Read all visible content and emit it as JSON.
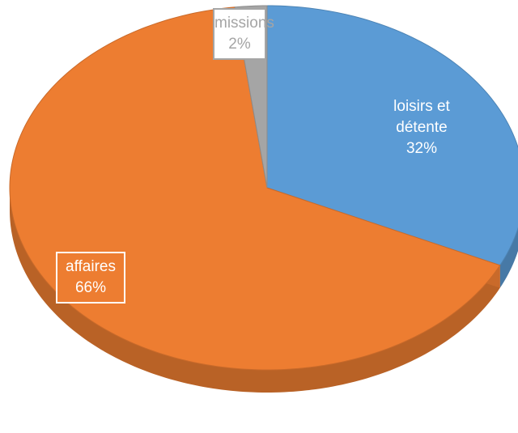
{
  "chart_data": {
    "type": "pie",
    "categories": [
      "loisirs et détente",
      "affaires",
      "missions"
    ],
    "values": [
      32,
      66,
      2
    ],
    "value_labels": [
      "32%",
      "66%",
      "2%"
    ],
    "colors": [
      "#5b9bd5",
      "#ed7d31",
      "#a5a5a5"
    ]
  }
}
